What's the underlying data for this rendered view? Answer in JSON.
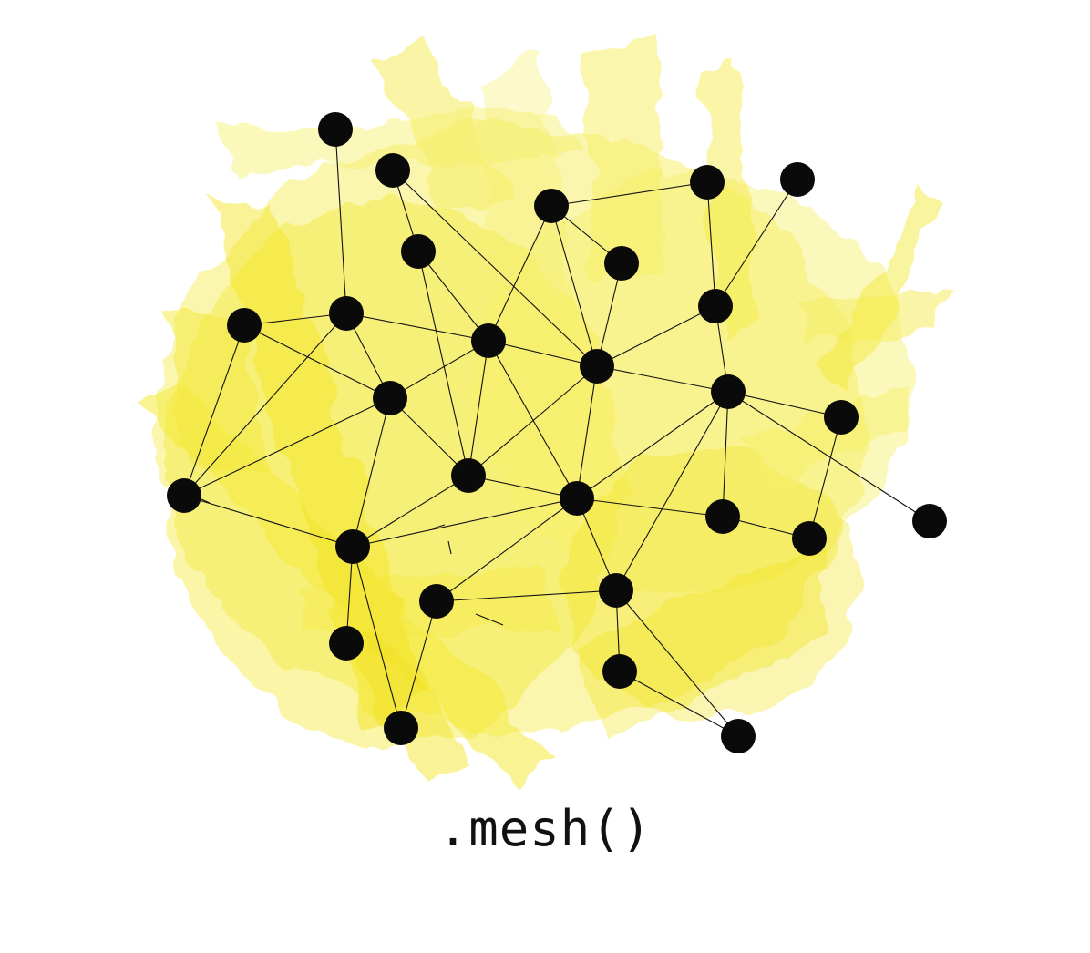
{
  "caption": ".mesh()",
  "colors": {
    "background": "#ffffff",
    "wash_light": "#f7ef6a",
    "wash_mid": "#f4e93c",
    "wash_deep": "#f1e21a",
    "node": "#0a0a0a",
    "edge": "#111111"
  },
  "graph": {
    "nodes": [
      {
        "id": "n1"
      },
      {
        "id": "n2"
      },
      {
        "id": "n3"
      },
      {
        "id": "n4"
      },
      {
        "id": "n5"
      },
      {
        "id": "n6"
      },
      {
        "id": "n7"
      },
      {
        "id": "n8"
      },
      {
        "id": "n9"
      },
      {
        "id": "n10"
      },
      {
        "id": "n11"
      },
      {
        "id": "n12"
      },
      {
        "id": "n13"
      },
      {
        "id": "n14"
      },
      {
        "id": "n15"
      },
      {
        "id": "n16"
      },
      {
        "id": "n17"
      },
      {
        "id": "n18"
      },
      {
        "id": "n19"
      },
      {
        "id": "n20"
      },
      {
        "id": "n21"
      },
      {
        "id": "n22"
      },
      {
        "id": "n23"
      },
      {
        "id": "n24"
      },
      {
        "id": "n25"
      },
      {
        "id": "n26"
      },
      {
        "id": "n27"
      }
    ],
    "edges": [
      [
        "n1",
        "n8"
      ],
      [
        "n2",
        "n4"
      ],
      [
        "n2",
        "n10"
      ],
      [
        "n3",
        "n9"
      ],
      [
        "n3",
        "n5"
      ],
      [
        "n3",
        "n10"
      ],
      [
        "n3",
        "n18"
      ],
      [
        "n4",
        "n9"
      ],
      [
        "n4",
        "n15"
      ],
      [
        "n5",
        "n10"
      ],
      [
        "n6",
        "n11"
      ],
      [
        "n6",
        "n7"
      ],
      [
        "n7",
        "n11"
      ],
      [
        "n7",
        "n12"
      ],
      [
        "n8",
        "n6"
      ],
      [
        "n8",
        "n9"
      ],
      [
        "n8",
        "n11"
      ],
      [
        "n8",
        "n14"
      ],
      [
        "n8",
        "n19"
      ],
      [
        "n9",
        "n10"
      ],
      [
        "n9",
        "n15"
      ],
      [
        "n9",
        "n18"
      ],
      [
        "n10",
        "n11"
      ],
      [
        "n10",
        "n15"
      ],
      [
        "n10",
        "n12"
      ],
      [
        "n11",
        "n18"
      ],
      [
        "n11",
        "n16"
      ],
      [
        "n11",
        "n17"
      ],
      [
        "n12",
        "n18"
      ],
      [
        "n12",
        "n20"
      ],
      [
        "n12",
        "n16"
      ],
      [
        "n12",
        "n13"
      ],
      [
        "n14",
        "n19"
      ],
      [
        "n14",
        "n20"
      ],
      [
        "n14",
        "n15"
      ],
      [
        "n15",
        "n18"
      ],
      [
        "n16",
        "n17"
      ],
      [
        "n13",
        "n17"
      ],
      [
        "n18",
        "n19"
      ],
      [
        "n18",
        "n22"
      ],
      [
        "n18",
        "n20"
      ],
      [
        "n18",
        "n21"
      ],
      [
        "n19",
        "n23"
      ],
      [
        "n19",
        "n24"
      ],
      [
        "n21",
        "n22"
      ],
      [
        "n24",
        "n21"
      ],
      [
        "n22",
        "n25"
      ],
      [
        "n22",
        "n26"
      ],
      [
        "n25",
        "n26"
      ],
      [
        "n20",
        "n27"
      ],
      [
        "n27",
        "n16"
      ]
    ]
  }
}
